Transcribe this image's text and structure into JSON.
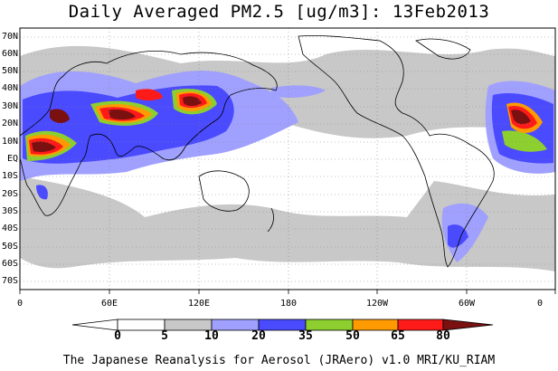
{
  "title": "Daily Averaged PM2.5 [ug/m3]: 13Feb2013",
  "footer": "The Japanese Reanalysis for Aerosol (JRAero) v1.0 MRI/KU_RIAM",
  "latitude_labels": [
    "70N",
    "60N",
    "50N",
    "40N",
    "30N",
    "20N",
    "10N",
    "EQ",
    "10S",
    "20S",
    "30S",
    "40S",
    "50S",
    "60S",
    "70S"
  ],
  "longitude_labels": [
    "0",
    "60E",
    "120E",
    "180",
    "120W",
    "60W",
    "0"
  ],
  "colorbar": {
    "labels": [
      "0",
      "5",
      "10",
      "20",
      "35",
      "50",
      "65",
      "80"
    ],
    "colors": [
      "#ffffff",
      "#c8c8c8",
      "#a0a0ff",
      "#4a4aff",
      "#8ccf2f",
      "#ff9a00",
      "#ff1a1a",
      "#7a1010"
    ]
  },
  "palette": {
    "gray": "#c8c8c8",
    "light_blue": "#a0a0ff",
    "blue": "#4a4aff",
    "green": "#8ccf2f",
    "orange": "#ff9a00",
    "red": "#ff1a1a",
    "dark_red": "#7a1010",
    "coast": "#000000"
  }
}
